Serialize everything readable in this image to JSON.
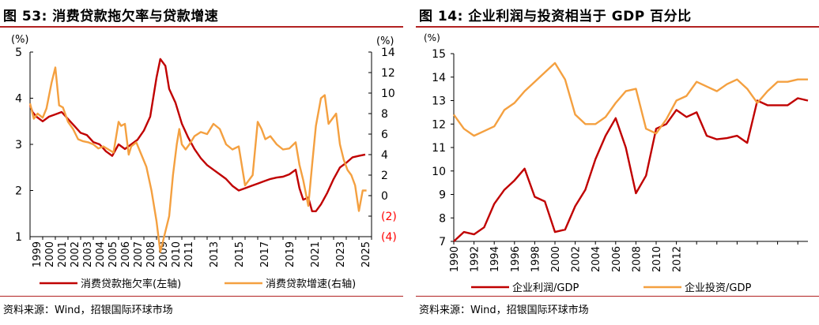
{
  "colors": {
    "red": "#C00000",
    "orange": "#F4A040",
    "title_rule": "#b22222",
    "neg_label": "#FF0000"
  },
  "chart_data": [
    {
      "id": "fig53",
      "type": "line",
      "title": "图 53: 消费贷款拖欠率与贷款增速",
      "source": "资料来源：Wind，招银国际环球市场",
      "y_left": {
        "unit": "(%)",
        "range": [
          1,
          5
        ],
        "ticks": [
          "1",
          "2",
          "3",
          "4",
          "5"
        ]
      },
      "y_right": {
        "unit": "(%)",
        "range": [
          -4,
          14
        ],
        "ticks": [
          "(4)",
          "(2)",
          "0",
          "2",
          "4",
          "6",
          "8",
          "10",
          "12",
          "14"
        ]
      },
      "x_range": [
        1999,
        2026
      ],
      "x_ticks": [
        "1999",
        "2000",
        "2001",
        "2002",
        "2003",
        "2004",
        "2005",
        "2006",
        "2007",
        "2008",
        "2009",
        "2010",
        "2011",
        "2013",
        "2015",
        "2017",
        "2019",
        "2021",
        "2023",
        "2025"
      ],
      "series": [
        {
          "name": "消费贷款拖欠率(左轴)",
          "axis": "left",
          "color": "#C00000",
          "x": [
            1999,
            1999.2,
            1999.5,
            2000,
            2000.5,
            2001,
            2001.5,
            2002,
            2002.5,
            2003,
            2003.5,
            2004,
            2004.5,
            2005,
            2005.5,
            2006,
            2006.5,
            2007,
            2007.5,
            2008,
            2008.5,
            2009,
            2009.3,
            2009.7,
            2010,
            2010.5,
            2011,
            2011.5,
            2012,
            2012.5,
            2013,
            2013.5,
            2014,
            2014.5,
            2015,
            2015.5,
            2016,
            2016.5,
            2017,
            2017.5,
            2018,
            2018.5,
            2019,
            2019.5,
            2020,
            2020.3,
            2020.6,
            2021,
            2021.3,
            2021.6,
            2022,
            2022.5,
            2023,
            2023.5,
            2024,
            2024.5,
            2025,
            2025.5
          ],
          "y": [
            3.85,
            3.7,
            3.6,
            3.5,
            3.6,
            3.65,
            3.7,
            3.55,
            3.4,
            3.25,
            3.2,
            3.05,
            3.0,
            2.85,
            2.75,
            3.0,
            2.9,
            3.0,
            3.1,
            3.3,
            3.6,
            4.45,
            4.85,
            4.7,
            4.2,
            3.9,
            3.45,
            3.15,
            2.9,
            2.7,
            2.55,
            2.45,
            2.35,
            2.25,
            2.1,
            2.0,
            2.05,
            2.1,
            2.15,
            2.2,
            2.25,
            2.28,
            2.3,
            2.35,
            2.45,
            2.05,
            1.8,
            1.85,
            1.55,
            1.55,
            1.7,
            1.95,
            2.25,
            2.5,
            2.6,
            2.72,
            2.75,
            2.78
          ]
        },
        {
          "name": "消费贷款增速(右轴)",
          "axis": "right",
          "color": "#F4A040",
          "x": [
            1999,
            1999.3,
            1999.6,
            2000,
            2000.3,
            2000.7,
            2001,
            2001.3,
            2001.6,
            2002,
            2002.4,
            2002.8,
            2003.2,
            2003.6,
            2004,
            2004.4,
            2004.8,
            2005.2,
            2005.6,
            2006,
            2006.2,
            2006.5,
            2006.8,
            2007,
            2007.4,
            2007.8,
            2008.2,
            2008.6,
            2009,
            2009.3,
            2009.6,
            2010,
            2010.3,
            2010.6,
            2010.8,
            2011,
            2011.3,
            2011.6,
            2012,
            2012.5,
            2013,
            2013.5,
            2014,
            2014.5,
            2015,
            2015.5,
            2016,
            2016.3,
            2016.6,
            2017,
            2017.3,
            2017.6,
            2018,
            2018.5,
            2019,
            2019.5,
            2020,
            2020.3,
            2020.6,
            2021,
            2021.3,
            2021.6,
            2022,
            2022.3,
            2022.6,
            2022.9,
            2023.2,
            2023.5,
            2023.8,
            2024.1,
            2024.4,
            2024.7,
            2025,
            2025.3,
            2025.6
          ],
          "y": [
            9,
            7.5,
            8,
            7.6,
            8.5,
            11,
            12.5,
            8.8,
            8.6,
            7.2,
            6.5,
            5.5,
            5.3,
            5.2,
            5.0,
            4.6,
            4.8,
            4.5,
            4.2,
            7.2,
            6.8,
            7.0,
            4.0,
            4.8,
            5.2,
            4.0,
            2.8,
            0.5,
            -2.5,
            -5.5,
            -4.0,
            -2.0,
            2.0,
            5.0,
            6.5,
            5.0,
            4.5,
            5.0,
            5.8,
            6.2,
            6.0,
            7.0,
            6.5,
            5.0,
            4.5,
            4.8,
            1.0,
            1.5,
            2.0,
            7.2,
            6.5,
            5.5,
            5.8,
            5.0,
            4.5,
            4.6,
            5.2,
            3.0,
            1.5,
            -1.0,
            3.0,
            6.8,
            9.5,
            9.8,
            7.0,
            7.5,
            8.0,
            5.0,
            3.5,
            2.5,
            2.0,
            1.0,
            -1.5,
            0.5,
            0.5
          ]
        }
      ],
      "legend": [
        "消费贷款拖欠率(左轴)",
        "消费贷款增速(右轴)"
      ]
    },
    {
      "id": "fig14",
      "type": "line",
      "title": "图 14: 企业利润与投资相当于 GDP 百分比",
      "source": "资料来源：Wind，招银国际环球市场",
      "y_left": {
        "unit": "(%)",
        "range": [
          7,
          15
        ],
        "ticks": [
          "7",
          "8",
          "9",
          "10",
          "11",
          "12",
          "13",
          "14",
          "15"
        ]
      },
      "x_range": [
        1990,
        2025
      ],
      "x_ticks": [
        "1990",
        "1992",
        "1994",
        "1996",
        "1998",
        "2000",
        "2002",
        "2004",
        "2006",
        "2008",
        "2010",
        "2012"
      ],
      "series": [
        {
          "name": "企业利润/GDP",
          "color": "#C00000",
          "x": [
            1990,
            1991,
            1992,
            1993,
            1994,
            1995,
            1996,
            1997,
            1998,
            1999,
            2000,
            2001,
            2002,
            2003,
            2004,
            2005,
            2006,
            2007,
            2008,
            2009,
            2010,
            2011,
            2012,
            2013,
            2014,
            2015,
            2016,
            2017,
            2018,
            2019,
            2020,
            2021,
            2022,
            2023,
            2024,
            2025
          ],
          "y": [
            7.0,
            7.4,
            7.3,
            7.6,
            8.6,
            9.2,
            9.6,
            10.1,
            8.9,
            8.7,
            7.4,
            7.5,
            8.5,
            9.2,
            10.5,
            11.5,
            12.25,
            11.0,
            9.05,
            9.8,
            11.8,
            12.0,
            12.6,
            12.3,
            12.5,
            11.5,
            11.35,
            11.4,
            11.5,
            11.2,
            13.0,
            12.8,
            12.8,
            12.8,
            13.1,
            13.0
          ]
        },
        {
          "name": "企业投资/GDP",
          "color": "#F4A040",
          "x": [
            1990,
            1991,
            1992,
            1993,
            1994,
            1995,
            1996,
            1997,
            1998,
            1999,
            2000,
            2001,
            2002,
            2003,
            2004,
            2005,
            2006,
            2007,
            2008,
            2009,
            2010,
            2011,
            2012,
            2013,
            2014,
            2015,
            2016,
            2017,
            2018,
            2019,
            2020,
            2021,
            2022,
            2023,
            2024,
            2025
          ],
          "y": [
            12.4,
            11.8,
            11.5,
            11.7,
            11.9,
            12.6,
            12.9,
            13.4,
            13.8,
            14.2,
            14.6,
            13.9,
            12.4,
            12.0,
            12.0,
            12.3,
            12.9,
            13.4,
            13.5,
            11.8,
            11.6,
            12.2,
            13.0,
            13.2,
            13.8,
            13.6,
            13.4,
            13.7,
            13.9,
            13.5,
            12.9,
            13.4,
            13.8,
            13.8,
            13.9,
            13.9
          ]
        }
      ],
      "legend": [
        "企业利润/GDP",
        "企业投资/GDP"
      ]
    }
  ]
}
